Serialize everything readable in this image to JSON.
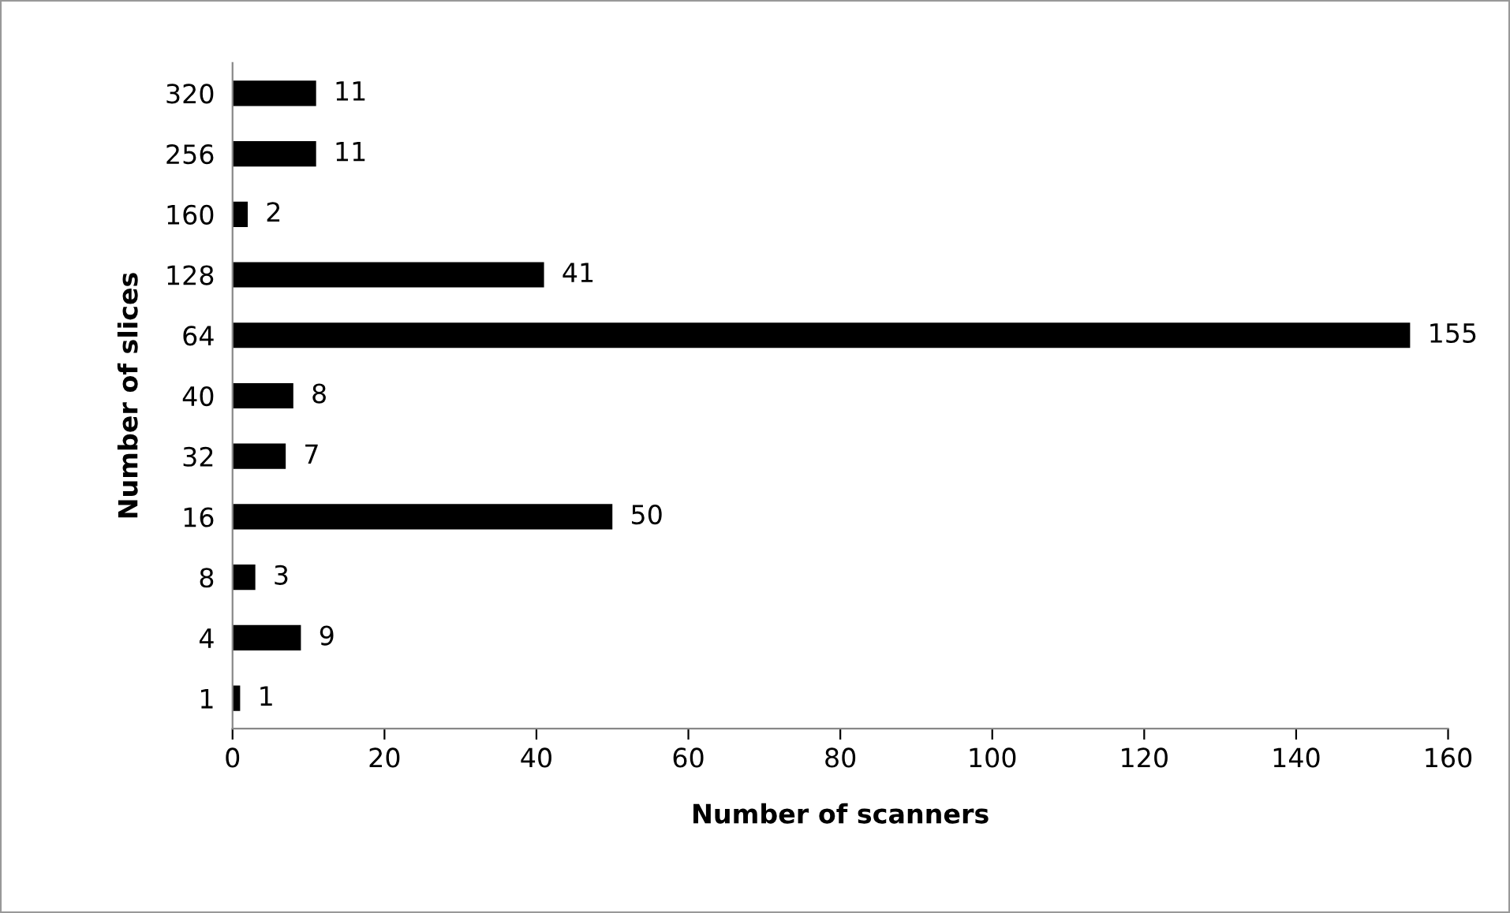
{
  "chart_data": {
    "type": "bar",
    "orientation": "horizontal",
    "xlabel": "Number of scanners",
    "ylabel": "Number of slices",
    "categories": [
      "320",
      "256",
      "160",
      "128",
      "64",
      "40",
      "32",
      "16",
      "8",
      "4",
      "1"
    ],
    "values": [
      11,
      11,
      2,
      41,
      155,
      8,
      7,
      50,
      3,
      9,
      1
    ],
    "color": "#000000",
    "data_labels": true,
    "xlim": [
      0,
      160
    ],
    "xticks": [
      0,
      20,
      40,
      60,
      80,
      100,
      120,
      140,
      160
    ],
    "grid": false,
    "legend": false
  }
}
